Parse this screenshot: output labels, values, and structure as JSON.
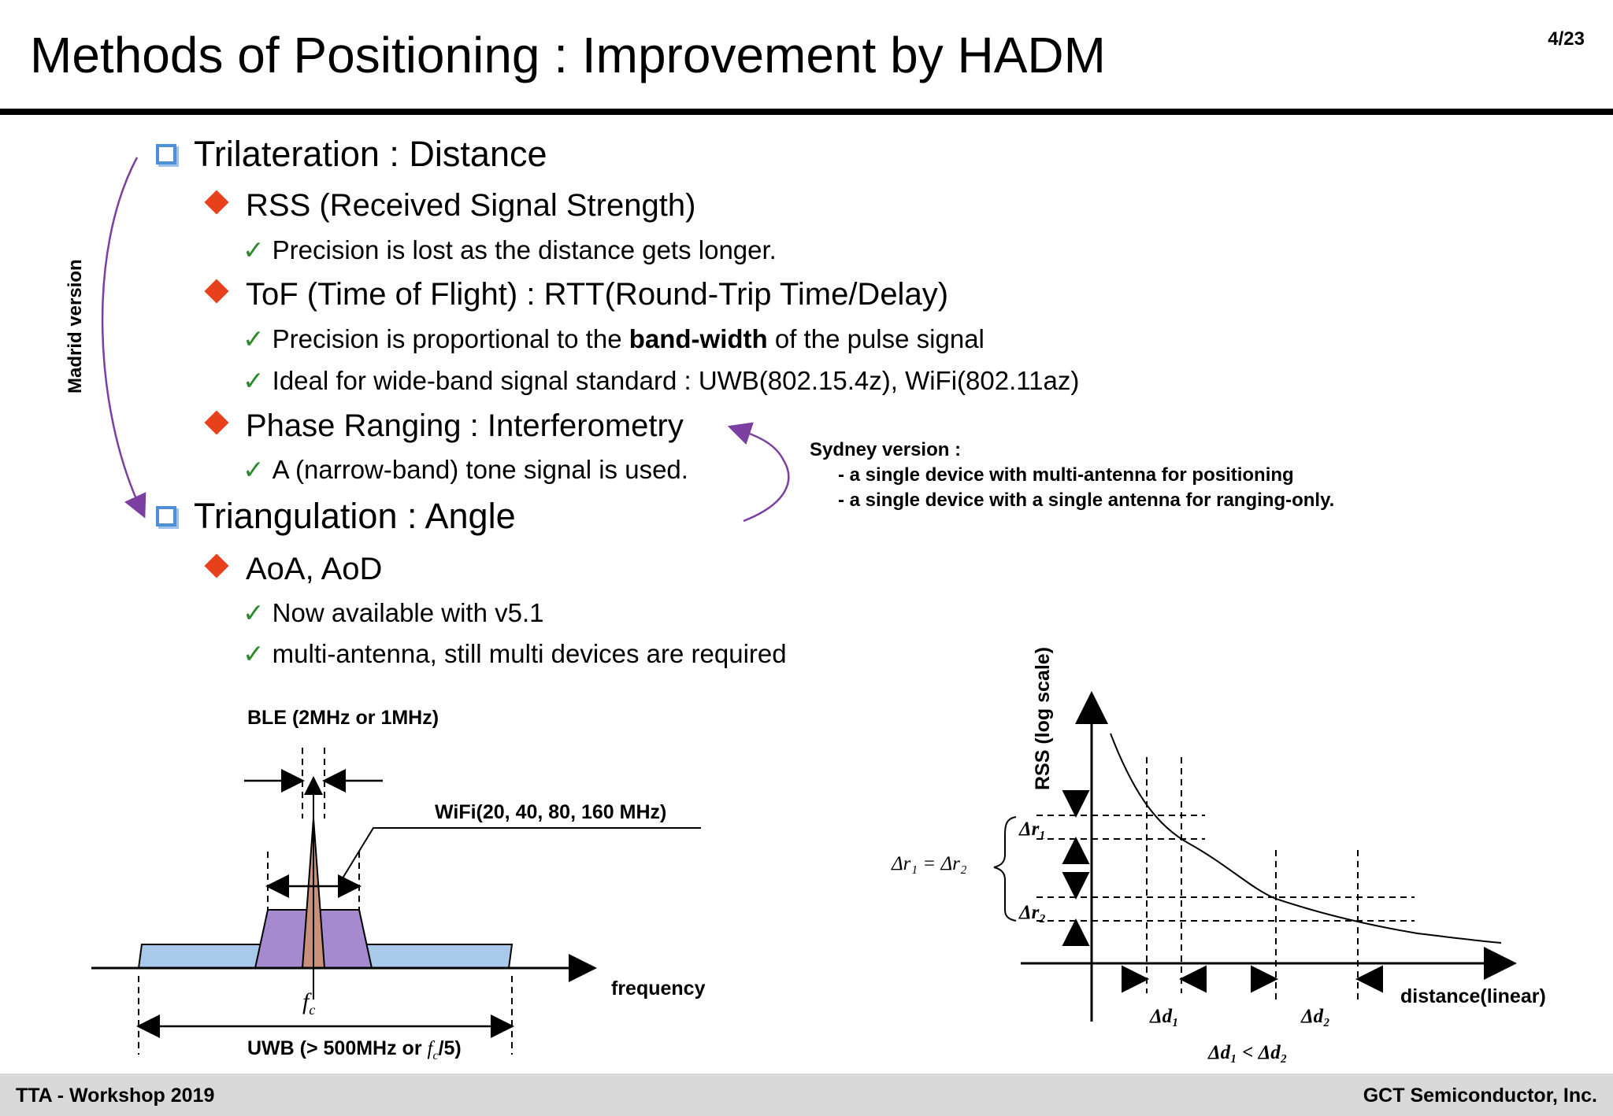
{
  "slide": {
    "title": "Methods of Positioning : Improvement by HADM",
    "page": "4/23"
  },
  "outline": {
    "trilateration": "Trilateration : Distance",
    "rss": "RSS (Received Signal Strength)",
    "rss_note": "Precision is lost as the distance gets longer.",
    "tof": "ToF (Time of Flight) : RTT(Round-Trip Time/Delay)",
    "tof_note1_a": "Precision is proportional to the ",
    "tof_note1_b": "band-width",
    "tof_note1_c": " of the pulse signal",
    "tof_note2": "Ideal for wide-band signal standard : UWB(802.15.4z), WiFi(802.11az)",
    "phase": "Phase Ranging : Interferometry",
    "phase_note": "A (narrow-band) tone signal is used.",
    "triangulation": "Triangulation : Angle",
    "aoa": "AoA, AoD",
    "aoa_note1": "Now available with v5.1",
    "aoa_note2": "multi-antenna, still multi devices are required",
    "check": "✓"
  },
  "annotations": {
    "madrid": "Madrid version",
    "sydney_title": "Sydney version :",
    "sydney_items": [
      "-  a single device with multi-antenna for positioning",
      "-  a single device with a single antenna for ranging-only."
    ]
  },
  "spectrum_figure": {
    "ble_label": "BLE (2MHz or 1MHz)",
    "wifi_label": "WiFi(20, 40, 80, 160 MHz)",
    "freq_label": "frequency",
    "fc_label": "f",
    "fc_sub": "c",
    "uwb_label_a": "UWB (> 500MHz or ",
    "uwb_label_b": "/5)",
    "colors": {
      "uwb": "#a9c9ea",
      "wifi": "#a58ad0",
      "ble": "#c9917a"
    }
  },
  "rss_figure": {
    "y_label": "RSS (log scale)",
    "x_label": "distance(linear)",
    "dr_eq": "Δr₁ = Δr₂",
    "dr1": "Δr₁",
    "dr2": "Δr₂",
    "dd1": "Δd₁",
    "dd2": "Δd₂",
    "dd_ineq": "Δd₁ < Δd₂"
  },
  "footer": {
    "left": "TTA - Workshop 2019",
    "right": "GCT Semiconductor, Inc."
  }
}
